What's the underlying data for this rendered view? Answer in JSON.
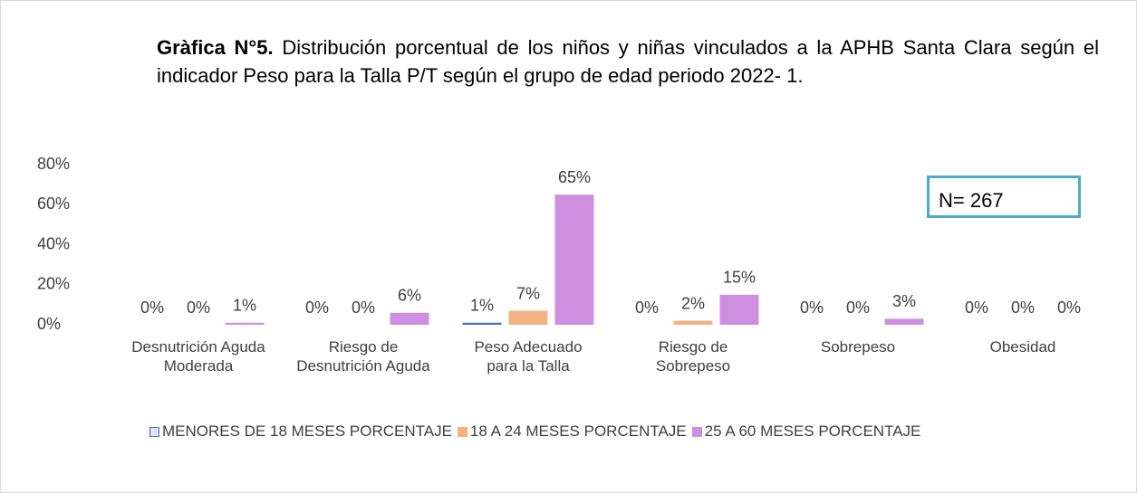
{
  "chart_data": {
    "type": "bar",
    "title_bold": "Gràfica N°5.",
    "title": "Distribución porcentual de los niños y niñas vinculados a la APHB Santa Clara según el indicador Peso para la Talla P/T según el grupo de edad periodo 2022- 1.",
    "annotation": "N= 267",
    "categories": [
      "Desnutrición Aguda Moderada",
      "Riesgo de Desnutrición Aguda",
      "Peso Adecuado para la Talla",
      "Riesgo de Sobrepeso",
      "Sobrepeso",
      "Obesidad"
    ],
    "series": [
      {
        "name": "MENORES DE 18 MESES PORCENTAJE",
        "color": "#4472c4",
        "values": [
          0,
          0,
          1,
          0,
          0,
          0
        ],
        "value_labels": [
          "0%",
          "0%",
          "1%",
          "0%",
          "0%",
          "0%"
        ]
      },
      {
        "name": "18 A 24 MESES PORCENTAJE",
        "color": "#f4b183",
        "values": [
          0,
          0,
          7,
          2,
          0,
          0
        ],
        "value_labels": [
          "0%",
          "0%",
          "7%",
          "2%",
          "0%",
          "0%"
        ]
      },
      {
        "name": "25 A 60 MESES PORCENTAJE",
        "color": "#cf8ee0",
        "values": [
          1,
          6,
          65,
          15,
          3,
          0
        ],
        "value_labels": [
          "1%",
          "6%",
          "65%",
          "15%",
          "3%",
          "0%"
        ]
      }
    ],
    "ylim": [
      0,
      80
    ],
    "yticks": [
      {
        "value": 0,
        "label": "0%"
      },
      {
        "value": 20,
        "label": "20%"
      },
      {
        "value": 40,
        "label": "40%"
      },
      {
        "value": 60,
        "label": "60%"
      },
      {
        "value": 80,
        "label": "80%"
      }
    ],
    "grid": false
  }
}
